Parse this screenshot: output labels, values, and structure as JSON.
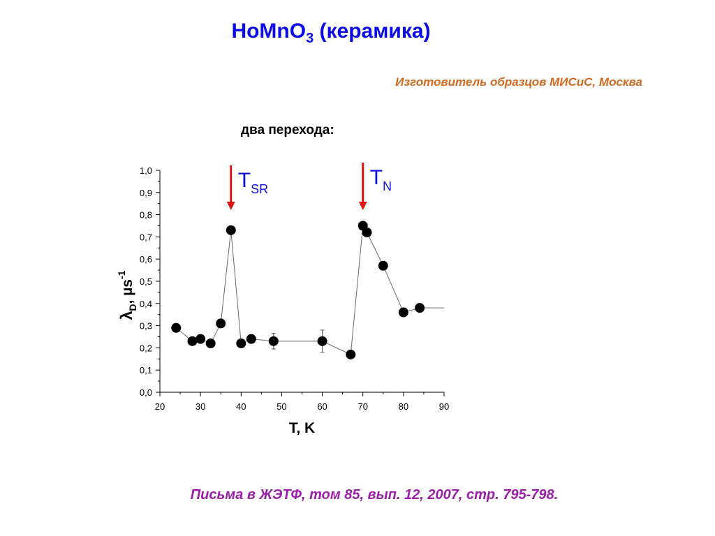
{
  "slide": {
    "title_main": "HoMnO",
    "title_sub": "3",
    "title_suffix": " (керамика)",
    "maker": "Изготовитель образцов МИСиС, Москва",
    "subtitle": "два перехода:",
    "footer": "Письма в ЖЭТФ, том 85, вып. 12, 2007, стр. 795-798."
  },
  "colors": {
    "title": "#0a0ae8",
    "maker": "#d2691e",
    "footer": "#9b1ea8",
    "arrow": "#e01010",
    "marker_label": "#1010e0",
    "points": "#000000"
  },
  "chart_data": {
    "type": "scatter",
    "xlabel": "T, K",
    "ylabel_main": "λ",
    "ylabel_sub": "D",
    "ylabel_rest": ", µs",
    "ylabel_sup": "-1",
    "xlim": [
      20,
      90
    ],
    "ylim": [
      0.0,
      1.0
    ],
    "xticks": [
      "20",
      "30",
      "40",
      "50",
      "60",
      "70",
      "80",
      "90"
    ],
    "yticks": [
      "0,0",
      "0,1",
      "0,2",
      "0,3",
      "0,4",
      "0,5",
      "0,6",
      "0,7",
      "0,8",
      "0,9",
      "1,0"
    ],
    "grid": false,
    "series": [
      {
        "x": [
          24,
          28,
          30,
          32.5,
          35,
          37.5,
          40,
          42.5,
          48,
          60,
          67,
          70,
          71,
          75,
          80,
          84,
          90
        ],
        "y": [
          0.29,
          0.23,
          0.24,
          0.22,
          0.31,
          0.73,
          0.22,
          0.24,
          0.23,
          0.23,
          0.17,
          0.75,
          0.72,
          0.57,
          0.36,
          0.38,
          0.38
        ],
        "markers": [
          true,
          true,
          true,
          true,
          true,
          true,
          true,
          true,
          true,
          true,
          true,
          true,
          true,
          true,
          true,
          true,
          false
        ],
        "error": [
          0,
          0,
          0,
          0,
          0,
          0,
          0,
          0,
          0.035,
          0.05,
          0,
          0,
          0,
          0,
          0,
          0,
          0
        ]
      }
    ],
    "annotations": [
      {
        "main": "T",
        "sub": "SR",
        "x": 37.5
      },
      {
        "main": "T",
        "sub": "N",
        "x": 70
      }
    ]
  }
}
